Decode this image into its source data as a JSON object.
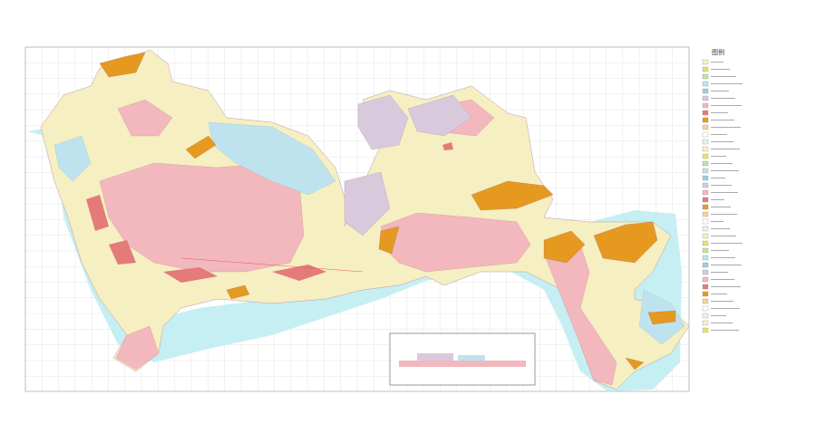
{
  "legend": {
    "title": "图例"
  }
}
